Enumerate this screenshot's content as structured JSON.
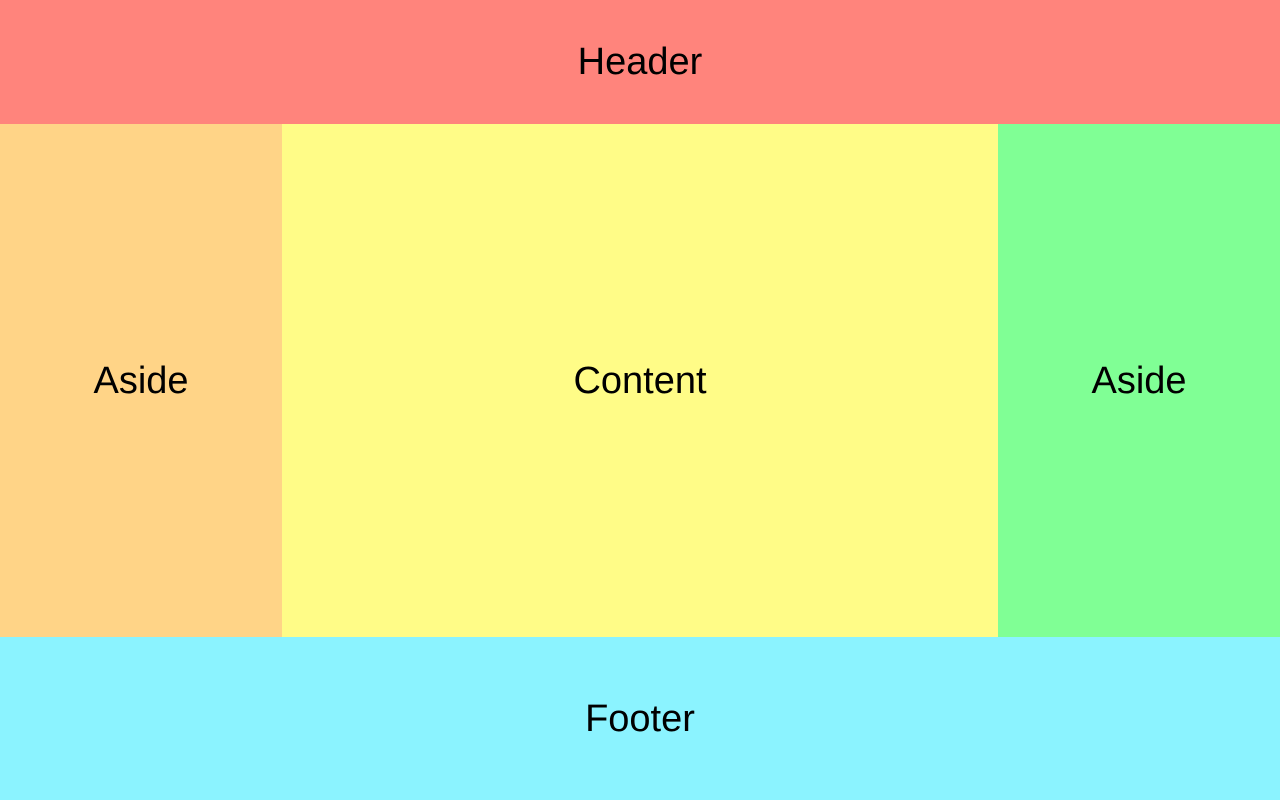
{
  "header": {
    "label": "Header",
    "color": "#FF847C"
  },
  "aside_left": {
    "label": "Aside",
    "color": "#FFD487"
  },
  "content": {
    "label": "Content",
    "color": "#FFFC87"
  },
  "aside_right": {
    "label": "Aside",
    "color": "#80FF95"
  },
  "footer": {
    "label": "Footer",
    "color": "#8BF3FF"
  }
}
